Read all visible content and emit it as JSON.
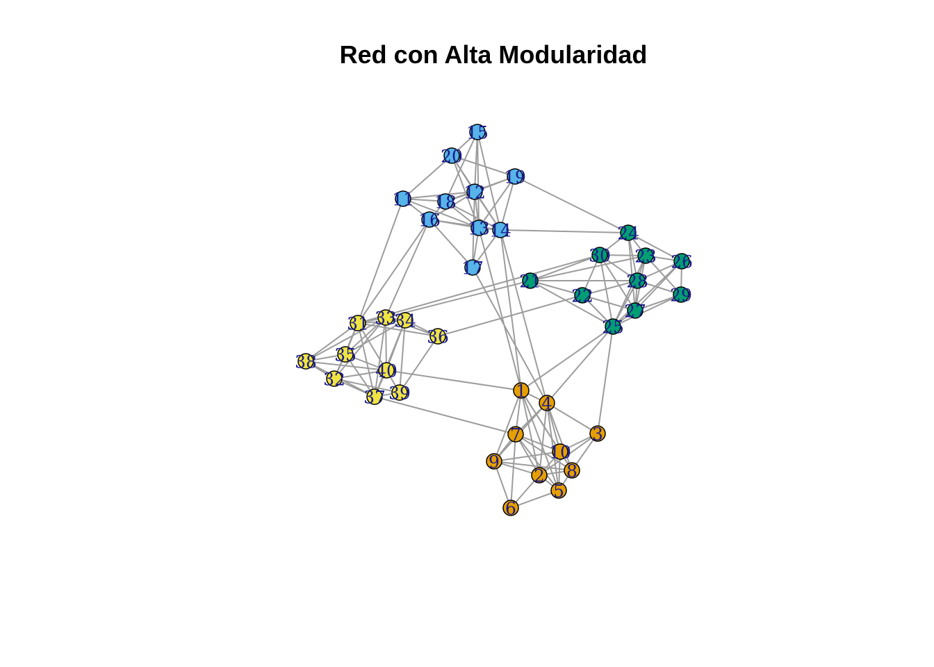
{
  "title": "Red con Alta Modularidad",
  "communities": [
    {
      "id": "A",
      "color": "#E69F00"
    },
    {
      "id": "B",
      "color": "#56B4E9"
    },
    {
      "id": "C",
      "color": "#009E73"
    },
    {
      "id": "D",
      "color": "#F0E442"
    }
  ],
  "nodes": [
    {
      "id": "1",
      "label": "1",
      "community": "A"
    },
    {
      "id": "2",
      "label": "2",
      "community": "A"
    },
    {
      "id": "3",
      "label": "3",
      "community": "A"
    },
    {
      "id": "4",
      "label": "4",
      "community": "A"
    },
    {
      "id": "5",
      "label": "5",
      "community": "A"
    },
    {
      "id": "6",
      "label": "6",
      "community": "A"
    },
    {
      "id": "7",
      "label": "7",
      "community": "A"
    },
    {
      "id": "8",
      "label": "8",
      "community": "A"
    },
    {
      "id": "9",
      "label": "9",
      "community": "A"
    },
    {
      "id": "10",
      "label": "10",
      "community": "A"
    },
    {
      "id": "11",
      "label": "11",
      "community": "B"
    },
    {
      "id": "12",
      "label": "12",
      "community": "B"
    },
    {
      "id": "13",
      "label": "13",
      "community": "B"
    },
    {
      "id": "14",
      "label": "14",
      "community": "B"
    },
    {
      "id": "15",
      "label": "15",
      "community": "B"
    },
    {
      "id": "16",
      "label": "16",
      "community": "B"
    },
    {
      "id": "17",
      "label": "17",
      "community": "B"
    },
    {
      "id": "18",
      "label": "18",
      "community": "B"
    },
    {
      "id": "19",
      "label": "19",
      "community": "B"
    },
    {
      "id": "20",
      "label": "20",
      "community": "B"
    },
    {
      "id": "21",
      "label": "21",
      "community": "C"
    },
    {
      "id": "22",
      "label": "22",
      "community": "C"
    },
    {
      "id": "23",
      "label": "23",
      "community": "C"
    },
    {
      "id": "24",
      "label": "24",
      "community": "C"
    },
    {
      "id": "25",
      "label": "25",
      "community": "C"
    },
    {
      "id": "26",
      "label": "26",
      "community": "C"
    },
    {
      "id": "27",
      "label": "27",
      "community": "C"
    },
    {
      "id": "28",
      "label": "28",
      "community": "C"
    },
    {
      "id": "29",
      "label": "29",
      "community": "C"
    },
    {
      "id": "30",
      "label": "30",
      "community": "C"
    },
    {
      "id": "31",
      "label": "31",
      "community": "D"
    },
    {
      "id": "32",
      "label": "32",
      "community": "D"
    },
    {
      "id": "33",
      "label": "33",
      "community": "D"
    },
    {
      "id": "34",
      "label": "34",
      "community": "D"
    },
    {
      "id": "35",
      "label": "35",
      "community": "D"
    },
    {
      "id": "36",
      "label": "36",
      "community": "D"
    },
    {
      "id": "37",
      "label": "37",
      "community": "D"
    },
    {
      "id": "38",
      "label": "38",
      "community": "D"
    },
    {
      "id": "39",
      "label": "39",
      "community": "D"
    },
    {
      "id": "40",
      "label": "40",
      "community": "D"
    }
  ],
  "edges": [
    [
      "1",
      "4"
    ],
    [
      "1",
      "7"
    ],
    [
      "1",
      "2"
    ],
    [
      "1",
      "10"
    ],
    [
      "1",
      "8"
    ],
    [
      "1",
      "5"
    ],
    [
      "1",
      "9"
    ],
    [
      "4",
      "7"
    ],
    [
      "4",
      "10"
    ],
    [
      "4",
      "8"
    ],
    [
      "4",
      "3"
    ],
    [
      "4",
      "2"
    ],
    [
      "4",
      "5"
    ],
    [
      "4",
      "9"
    ],
    [
      "7",
      "9"
    ],
    [
      "7",
      "10"
    ],
    [
      "7",
      "2"
    ],
    [
      "7",
      "6"
    ],
    [
      "7",
      "8"
    ],
    [
      "7",
      "5"
    ],
    [
      "9",
      "10"
    ],
    [
      "9",
      "2"
    ],
    [
      "9",
      "6"
    ],
    [
      "9",
      "8"
    ],
    [
      "10",
      "2"
    ],
    [
      "10",
      "8"
    ],
    [
      "10",
      "5"
    ],
    [
      "2",
      "5"
    ],
    [
      "2",
      "6"
    ],
    [
      "2",
      "8"
    ],
    [
      "6",
      "5"
    ],
    [
      "8",
      "5"
    ],
    [
      "3",
      "8"
    ],
    [
      "3",
      "2"
    ],
    [
      "3",
      "10"
    ],
    [
      "15",
      "20"
    ],
    [
      "15",
      "12"
    ],
    [
      "15",
      "18"
    ],
    [
      "15",
      "13"
    ],
    [
      "15",
      "14"
    ],
    [
      "20",
      "19"
    ],
    [
      "20",
      "12"
    ],
    [
      "20",
      "11"
    ],
    [
      "20",
      "13"
    ],
    [
      "20",
      "14"
    ],
    [
      "11",
      "18"
    ],
    [
      "11",
      "16"
    ],
    [
      "11",
      "12"
    ],
    [
      "11",
      "13"
    ],
    [
      "18",
      "12"
    ],
    [
      "18",
      "16"
    ],
    [
      "18",
      "13"
    ],
    [
      "18",
      "14"
    ],
    [
      "18",
      "19"
    ],
    [
      "12",
      "19"
    ],
    [
      "12",
      "13"
    ],
    [
      "12",
      "14"
    ],
    [
      "12",
      "17"
    ],
    [
      "12",
      "16"
    ],
    [
      "16",
      "13"
    ],
    [
      "16",
      "14"
    ],
    [
      "16",
      "17"
    ],
    [
      "13",
      "14"
    ],
    [
      "13",
      "17"
    ],
    [
      "13",
      "19"
    ],
    [
      "14",
      "19"
    ],
    [
      "14",
      "17"
    ],
    [
      "24",
      "30"
    ],
    [
      "24",
      "23"
    ],
    [
      "24",
      "28"
    ],
    [
      "24",
      "27"
    ],
    [
      "24",
      "26"
    ],
    [
      "30",
      "23"
    ],
    [
      "30",
      "22"
    ],
    [
      "30",
      "21"
    ],
    [
      "30",
      "28"
    ],
    [
      "30",
      "27"
    ],
    [
      "30",
      "25"
    ],
    [
      "23",
      "26"
    ],
    [
      "23",
      "28"
    ],
    [
      "23",
      "27"
    ],
    [
      "23",
      "29"
    ],
    [
      "23",
      "25"
    ],
    [
      "26",
      "29"
    ],
    [
      "26",
      "28"
    ],
    [
      "26",
      "27"
    ],
    [
      "26",
      "25"
    ],
    [
      "28",
      "27"
    ],
    [
      "28",
      "22"
    ],
    [
      "28",
      "25"
    ],
    [
      "28",
      "29"
    ],
    [
      "29",
      "27"
    ],
    [
      "29",
      "25"
    ],
    [
      "21",
      "22"
    ],
    [
      "21",
      "25"
    ],
    [
      "21",
      "23"
    ],
    [
      "22",
      "25"
    ],
    [
      "22",
      "27"
    ],
    [
      "27",
      "25"
    ],
    [
      "21",
      "28"
    ],
    [
      "31",
      "33"
    ],
    [
      "31",
      "34"
    ],
    [
      "31",
      "35"
    ],
    [
      "31",
      "38"
    ],
    [
      "31",
      "40"
    ],
    [
      "31",
      "37"
    ],
    [
      "31",
      "32"
    ],
    [
      "33",
      "34"
    ],
    [
      "33",
      "35"
    ],
    [
      "33",
      "38"
    ],
    [
      "33",
      "40"
    ],
    [
      "33",
      "36"
    ],
    [
      "33",
      "37"
    ],
    [
      "33",
      "32"
    ],
    [
      "34",
      "36"
    ],
    [
      "34",
      "40"
    ],
    [
      "34",
      "39"
    ],
    [
      "34",
      "35"
    ],
    [
      "34",
      "37"
    ],
    [
      "35",
      "38"
    ],
    [
      "35",
      "40"
    ],
    [
      "35",
      "32"
    ],
    [
      "35",
      "37"
    ],
    [
      "38",
      "32"
    ],
    [
      "38",
      "40"
    ],
    [
      "38",
      "37"
    ],
    [
      "32",
      "37"
    ],
    [
      "32",
      "40"
    ],
    [
      "32",
      "39"
    ],
    [
      "40",
      "37"
    ],
    [
      "40",
      "39"
    ],
    [
      "37",
      "39"
    ],
    [
      "36",
      "39"
    ],
    [
      "36",
      "31"
    ],
    [
      "19",
      "24"
    ],
    [
      "14",
      "24"
    ],
    [
      "14",
      "1"
    ],
    [
      "13",
      "1"
    ],
    [
      "14",
      "4"
    ],
    [
      "17",
      "4"
    ],
    [
      "25",
      "1"
    ],
    [
      "25",
      "4"
    ],
    [
      "25",
      "3"
    ],
    [
      "21",
      "33"
    ],
    [
      "22",
      "36"
    ],
    [
      "11",
      "31"
    ],
    [
      "16",
      "31"
    ],
    [
      "16",
      "33"
    ],
    [
      "40",
      "1"
    ],
    [
      "37",
      "7"
    ],
    [
      "31",
      "30"
    ]
  ]
}
